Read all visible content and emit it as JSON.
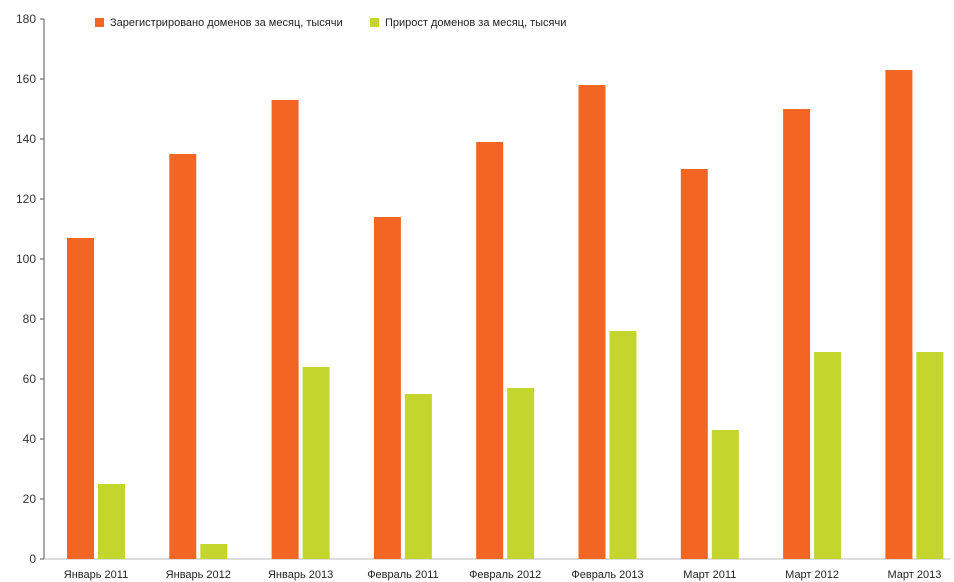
{
  "chart_data": {
    "type": "bar",
    "title": "",
    "xlabel": "",
    "ylabel": "",
    "ylim": [
      0,
      180
    ],
    "yticks": [
      0,
      20,
      40,
      60,
      80,
      100,
      120,
      140,
      160,
      180
    ],
    "grid": false,
    "legend_position": "top-left",
    "categories": [
      "Январь 2011",
      "Январь 2012",
      "Январь 2013",
      "Февраль 2011",
      "Февраль 2012",
      "Февраль 2013",
      "Март 2011",
      "Март 2012",
      "Март 2013"
    ],
    "series": [
      {
        "name": "Зарегистрировано доменов за месяц, тысячи",
        "color": "#f26522",
        "values": [
          107,
          135,
          153,
          114,
          139,
          158,
          130,
          150,
          163
        ]
      },
      {
        "name": "Прирост доменов за месяц, тысячи",
        "color": "#c4d62d",
        "values": [
          25,
          5,
          64,
          55,
          57,
          76,
          43,
          69,
          69
        ]
      }
    ]
  }
}
